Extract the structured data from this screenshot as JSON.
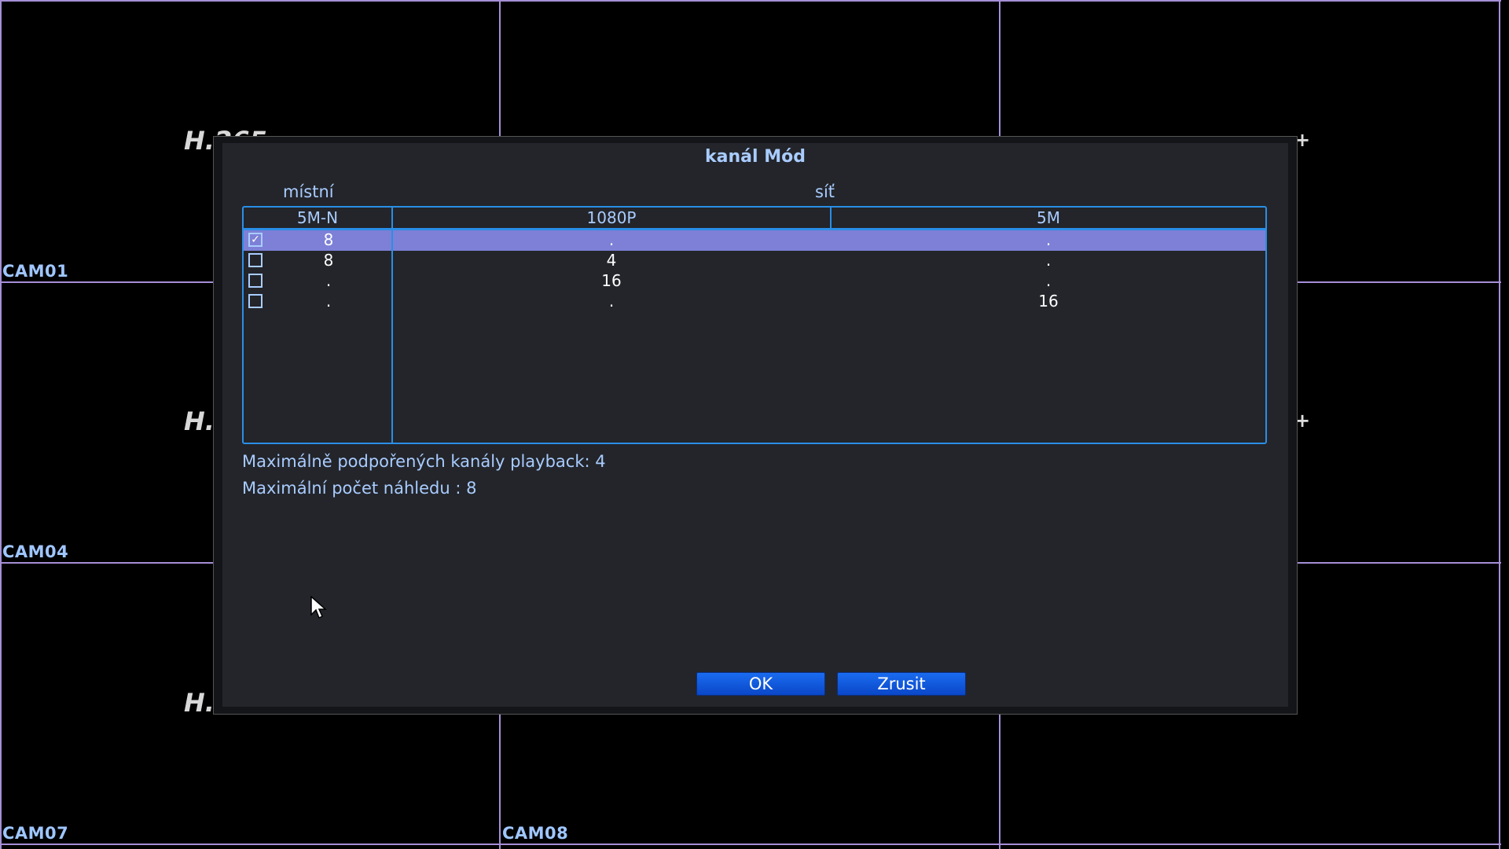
{
  "grid": {
    "cameras": [
      {
        "label": "CAM01"
      },
      {
        "label": "CAM04"
      },
      {
        "label": "CAM07"
      },
      {
        "label": "CAM08"
      }
    ],
    "codec_label": "H.265",
    "line_color": "#a58fd6"
  },
  "dialog": {
    "title": "kanál Mód",
    "group_local": "místní",
    "group_network": "síť",
    "columns": [
      "5M-N",
      "1080P",
      "5M"
    ],
    "rows": [
      {
        "checked": true,
        "values": [
          "8",
          ".",
          "."
        ]
      },
      {
        "checked": false,
        "values": [
          "8",
          "4",
          "."
        ]
      },
      {
        "checked": false,
        "values": [
          ".",
          "16",
          "."
        ]
      },
      {
        "checked": false,
        "values": [
          ".",
          ".",
          "16"
        ]
      }
    ],
    "info_playback": "Maximálně podpořených kanály playback: 4",
    "info_preview": "Maximální počet náhledu   : 8",
    "ok_label": "OK",
    "cancel_label": "Zrusit",
    "accent_color": "#2a8ee6",
    "selected_row_color": "#7d80d6"
  }
}
